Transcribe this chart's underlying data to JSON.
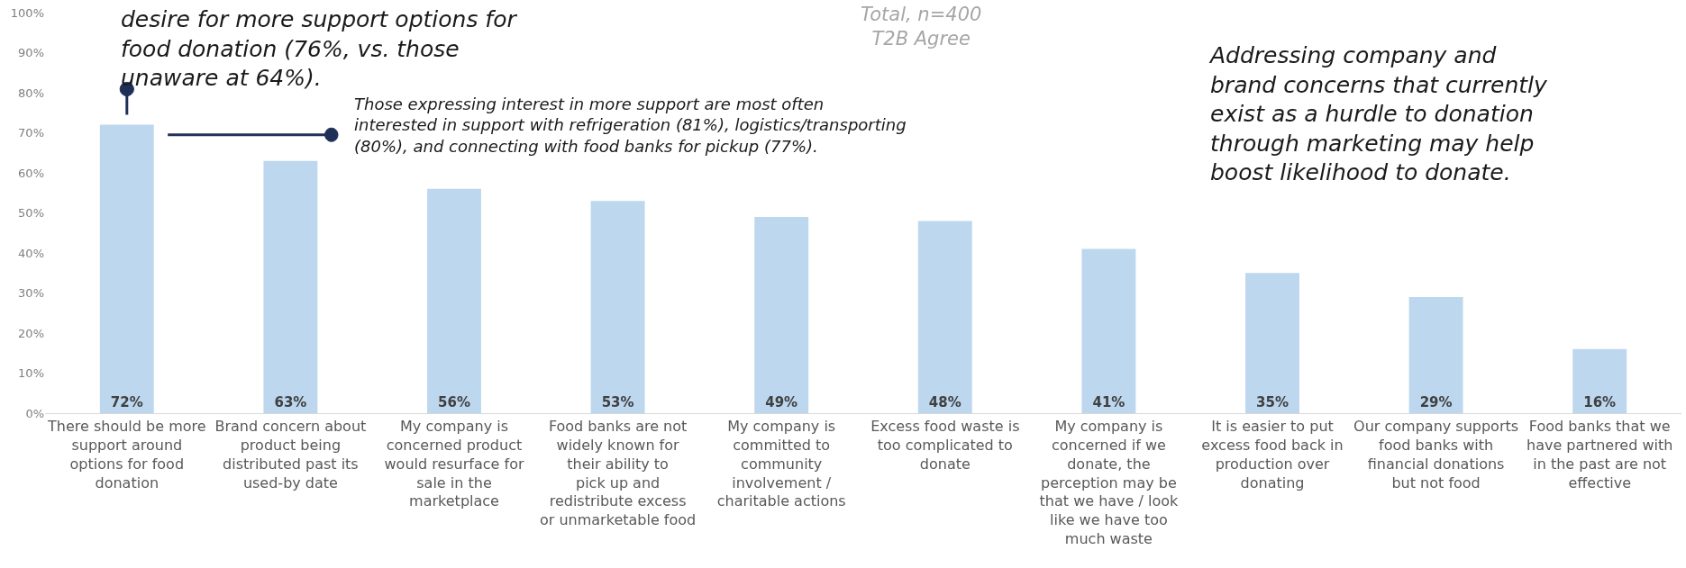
{
  "chart_data": {
    "type": "bar",
    "title": "Total, n=400",
    "subtitle": "T2B Agree",
    "categories": [
      "There should be more support around options for food donation",
      "Brand concern about product being distributed past its used-by date",
      "My company is concerned product would resurface for sale in the marketplace",
      "Food banks are not widely known for their ability to pick up and redistribute excess or unmarketable food",
      "My company is committed to community involvement / charitable actions",
      "Excess food waste is too complicated to donate",
      "My company is concerned if we donate, the perception may be that we have / look like we have too much waste",
      "It is easier to put excess food back in production over donating",
      "Our company supports food banks with financial donations but not food",
      "Food banks that we have partnered with in the past are not effective"
    ],
    "values": [
      72,
      63,
      56,
      53,
      49,
      48,
      41,
      35,
      29,
      16
    ],
    "value_labels": [
      "72%",
      "63%",
      "56%",
      "53%",
      "49%",
      "48%",
      "41%",
      "35%",
      "29%",
      "16%"
    ],
    "color": "#bdd7ee",
    "ylim": [
      0,
      100
    ],
    "yticks": [
      {
        "value": 0,
        "label": "0%"
      },
      {
        "value": 10,
        "label": "10%"
      },
      {
        "value": 20,
        "label": "20%"
      },
      {
        "value": 30,
        "label": "30%"
      },
      {
        "value": 40,
        "label": "40%"
      },
      {
        "value": 50,
        "label": "50%"
      },
      {
        "value": 60,
        "label": "60%"
      },
      {
        "value": 70,
        "label": "70%"
      },
      {
        "value": 80,
        "label": "80%"
      },
      {
        "value": 90,
        "label": "90%"
      },
      {
        "value": 100,
        "label": "100%"
      }
    ],
    "annotations": [
      "desire for more support options for\nfood donation (76%, vs. those\nunaware at 64%).",
      "Those expressing interest in more support are most often\ninterested in support with refrigeration (81%), logistics/transporting\n(80%), and connecting with food banks for pickup (77%).",
      "Addressing company and\nbrand concerns that currently\nexist as a hurdle to donation\nthrough marketing may help\nboost likelihood to donate."
    ],
    "grid": false
  }
}
